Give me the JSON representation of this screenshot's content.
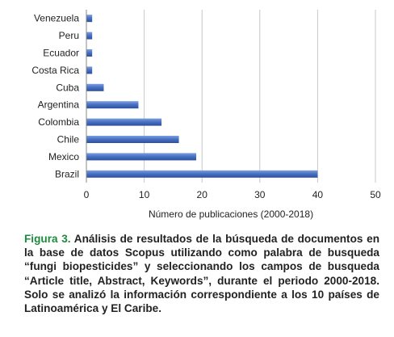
{
  "chart_data": {
    "type": "bar",
    "orientation": "horizontal",
    "categories": [
      "Venezuela",
      "Peru",
      "Ecuador",
      "Costa Rica",
      "Cuba",
      "Argentina",
      "Colombia",
      "Chile",
      "Mexico",
      "Brazil"
    ],
    "values": [
      1,
      1,
      1,
      1,
      3,
      9,
      13,
      16,
      19,
      40
    ],
    "xlabel": "Número de publicaciones (2000-2018)",
    "ylabel": "",
    "xlim": [
      0,
      50
    ],
    "xticks": [
      "0",
      "10",
      "20",
      "30",
      "40",
      "50"
    ],
    "grid": "vertical",
    "bar_color": "#4a72c4"
  },
  "caption": {
    "label": "Figura 3.",
    "text": "Análisis de resultados de la búsqueda de documentos en la base de datos Scopus utilizando como palabra de busqueda “fungi biopesticides” y seleccionando los campos de busqueda “Article title, Abstract, Keywords”, durante el periodo 2000-2018. Solo se analizó la información correspondiente a los 10 países de Latinoamérica y El Caribe."
  }
}
